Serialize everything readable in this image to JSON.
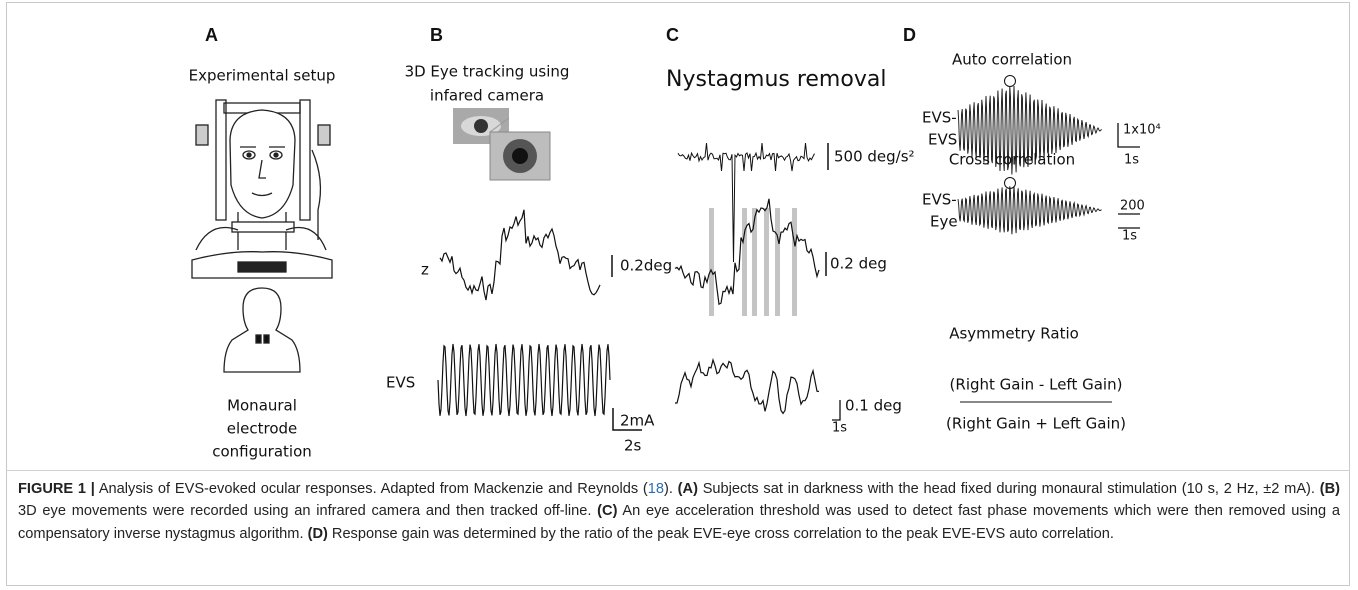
{
  "panels": {
    "A": {
      "label": "A",
      "title": "Experimental setup",
      "electrode_caption": [
        "Monaural",
        "electrode",
        "configuration"
      ]
    },
    "B": {
      "label": "B",
      "title": [
        "3D Eye tracking using",
        "infared camera"
      ],
      "z_label": "z",
      "z_scale": "0.2deg",
      "evs_label": "EVS",
      "evs_scale": "2mA",
      "time_scale": "2s"
    },
    "C": {
      "label": "C",
      "title": "Nystagmus removal",
      "accel_scale": "500 deg/s²",
      "mid_scale": "0.2 deg",
      "bottom_scale": "0.1 deg",
      "time_scale": "1s"
    },
    "D": {
      "label": "D",
      "auto_title": "Auto correlation",
      "auto_label": [
        "EVS-",
        "EVS"
      ],
      "auto_scale": "1x10⁴",
      "auto_time": "1s",
      "cross_title": "Cross correlation",
      "cross_label": [
        "EVS-",
        "Eye"
      ],
      "cross_scale": "200",
      "cross_time": "1s",
      "ratio_title": "Asymmetry Ratio",
      "numerator": "(Right Gain - Left Gain)",
      "denominator": "(Right Gain + Left Gain)"
    }
  },
  "caption": [
    "FIGURE 1 |",
    " Analysis of EVS-evoked ocular responses. Adapted from Mackenzie and Reynolds (",
    "18",
    "). ",
    "(A)",
    " Subjects sat in darkness with the head fixed during monaural stimulation (10 s, 2 Hz, ±2 mA). ",
    "(B)",
    " 3D eye movements were recorded using an infrared camera and then tracked off-line. ",
    "(C)",
    " An eye acceleration threshold was used to detect fast phase movements which were then removed using a compensatory inverse nystagmus algorithm. ",
    "(D)",
    " Response gain was determined by the ratio of the peak EVE-eye cross correlation to the peak EVE-EVS auto correlation."
  ]
}
